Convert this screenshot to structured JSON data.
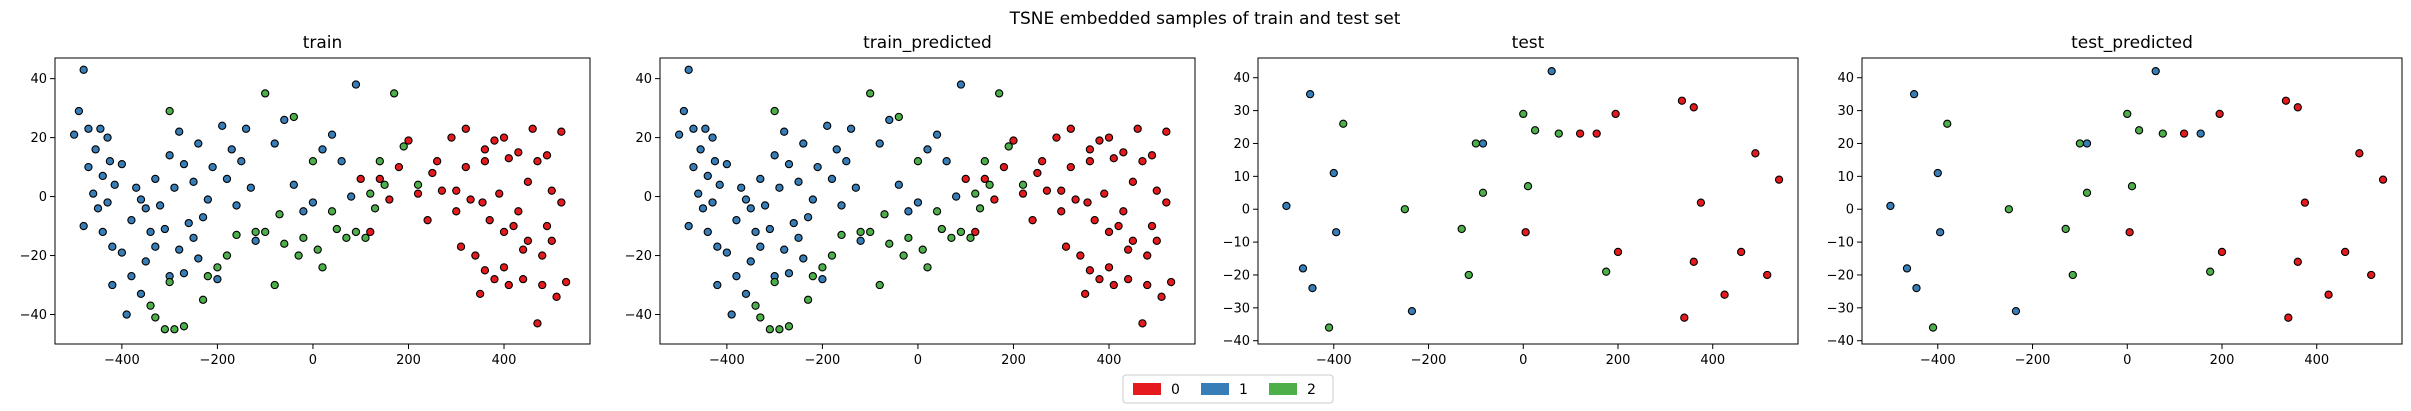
{
  "figure": {
    "suptitle": "TSNE embedded samples of train and test set"
  },
  "legend": {
    "placement": "bottom-center",
    "entries": [
      {
        "label": "0",
        "color": "#e41a1c"
      },
      {
        "label": "1",
        "color": "#377eb8"
      },
      {
        "label": "2",
        "color": "#4daf4a"
      }
    ]
  },
  "class_colors": {
    "0": "#e41a1c",
    "1": "#377eb8",
    "2": "#4daf4a"
  },
  "chart_data": [
    {
      "type": "scatter",
      "title": "train",
      "xlim": [
        -540,
        580
      ],
      "ylim": [
        -50,
        47
      ],
      "xticks": [
        -400,
        -200,
        0,
        200,
        400
      ],
      "yticks": [
        -40,
        -20,
        0,
        20,
        40
      ],
      "points": [
        [
          -480,
          43,
          1
        ],
        [
          -500,
          21,
          1
        ],
        [
          -490,
          29,
          1
        ],
        [
          -470,
          23,
          1
        ],
        [
          -455,
          16,
          1
        ],
        [
          -445,
          23,
          1
        ],
        [
          -430,
          20,
          1
        ],
        [
          -470,
          10,
          1
        ],
        [
          -460,
          1,
          1
        ],
        [
          -450,
          -4,
          1
        ],
        [
          -440,
          7,
          1
        ],
        [
          -425,
          12,
          1
        ],
        [
          -415,
          4,
          1
        ],
        [
          -430,
          -2,
          1
        ],
        [
          -480,
          -10,
          1
        ],
        [
          -440,
          -12,
          1
        ],
        [
          -420,
          -17,
          1
        ],
        [
          -400,
          -19,
          1
        ],
        [
          -380,
          -8,
          1
        ],
        [
          -360,
          -1,
          1
        ],
        [
          -350,
          -22,
          1
        ],
        [
          -340,
          -12,
          1
        ],
        [
          -330,
          -17,
          1
        ],
        [
          -320,
          -3,
          1
        ],
        [
          -310,
          -11,
          1
        ],
        [
          -300,
          -27,
          1
        ],
        [
          -290,
          3,
          1
        ],
        [
          -280,
          -18,
          1
        ],
        [
          -270,
          -26,
          1
        ],
        [
          -260,
          -9,
          1
        ],
        [
          -250,
          -14,
          1
        ],
        [
          -240,
          -21,
          1
        ],
        [
          -230,
          -7,
          1
        ],
        [
          -420,
          -30,
          1
        ],
        [
          -380,
          -27,
          1
        ],
        [
          -360,
          -33,
          1
        ],
        [
          -400,
          11,
          1
        ],
        [
          -370,
          3,
          1
        ],
        [
          -350,
          -4,
          1
        ],
        [
          -330,
          6,
          1
        ],
        [
          -300,
          14,
          1
        ],
        [
          -280,
          22,
          1
        ],
        [
          -270,
          11,
          1
        ],
        [
          -250,
          5,
          1
        ],
        [
          -240,
          18,
          1
        ],
        [
          -220,
          -1,
          1
        ],
        [
          -210,
          10,
          1
        ],
        [
          -200,
          -28,
          1
        ],
        [
          -190,
          24,
          1
        ],
        [
          -180,
          6,
          1
        ],
        [
          -170,
          16,
          1
        ],
        [
          -160,
          -3,
          1
        ],
        [
          -150,
          12,
          1
        ],
        [
          -140,
          23,
          1
        ],
        [
          -130,
          3,
          1
        ],
        [
          -120,
          -15,
          1
        ],
        [
          -80,
          18,
          1
        ],
        [
          -60,
          26,
          1
        ],
        [
          -40,
          4,
          1
        ],
        [
          -20,
          -5,
          1
        ],
        [
          0,
          -2,
          1
        ],
        [
          20,
          16,
          1
        ],
        [
          40,
          21,
          1
        ],
        [
          60,
          12,
          1
        ],
        [
          80,
          0,
          1
        ],
        [
          90,
          38,
          1
        ],
        [
          -390,
          -40,
          1
        ],
        [
          -340,
          -37,
          2
        ],
        [
          -310,
          -45,
          2
        ],
        [
          -290,
          -45,
          2
        ],
        [
          -270,
          -44,
          2
        ],
        [
          -330,
          -41,
          2
        ],
        [
          -300,
          -29,
          2
        ],
        [
          -300,
          29,
          2
        ],
        [
          -230,
          -35,
          2
        ],
        [
          -220,
          -27,
          2
        ],
        [
          -200,
          -24,
          2
        ],
        [
          -180,
          -20,
          2
        ],
        [
          -160,
          -13,
          2
        ],
        [
          -120,
          -12,
          2
        ],
        [
          -100,
          35,
          2
        ],
        [
          -80,
          -30,
          2
        ],
        [
          -100,
          -12,
          2
        ],
        [
          -70,
          -6,
          2
        ],
        [
          -60,
          -16,
          2
        ],
        [
          -40,
          27,
          2
        ],
        [
          -30,
          -20,
          2
        ],
        [
          -20,
          -14,
          2
        ],
        [
          0,
          12,
          2
        ],
        [
          10,
          -18,
          2
        ],
        [
          20,
          -24,
          2
        ],
        [
          40,
          -5,
          2
        ],
        [
          50,
          -11,
          2
        ],
        [
          70,
          -14,
          2
        ],
        [
          90,
          -12,
          2
        ],
        [
          110,
          -14,
          2
        ],
        [
          120,
          1,
          2
        ],
        [
          130,
          -4,
          2
        ],
        [
          140,
          12,
          2
        ],
        [
          150,
          4,
          2
        ],
        [
          170,
          35,
          2
        ],
        [
          190,
          17,
          2
        ],
        [
          220,
          4,
          2
        ],
        [
          100,
          6,
          0
        ],
        [
          120,
          -12,
          0
        ],
        [
          140,
          6,
          0
        ],
        [
          160,
          -1,
          0
        ],
        [
          180,
          10,
          0
        ],
        [
          200,
          19,
          0
        ],
        [
          220,
          1,
          0
        ],
        [
          240,
          -8,
          0
        ],
        [
          260,
          12,
          0
        ],
        [
          270,
          2,
          0
        ],
        [
          290,
          20,
          0
        ],
        [
          300,
          2,
          0
        ],
        [
          310,
          -17,
          0
        ],
        [
          320,
          23,
          0
        ],
        [
          330,
          -1,
          0
        ],
        [
          340,
          -20,
          0
        ],
        [
          350,
          -33,
          0
        ],
        [
          360,
          16,
          0
        ],
        [
          370,
          -8,
          0
        ],
        [
          380,
          19,
          0
        ],
        [
          390,
          1,
          0
        ],
        [
          400,
          -24,
          0
        ],
        [
          410,
          13,
          0
        ],
        [
          420,
          -10,
          0
        ],
        [
          430,
          15,
          0
        ],
        [
          440,
          -28,
          0
        ],
        [
          450,
          5,
          0
        ],
        [
          460,
          23,
          0
        ],
        [
          470,
          -43,
          0
        ],
        [
          480,
          -20,
          0
        ],
        [
          490,
          -10,
          0
        ],
        [
          500,
          2,
          0
        ],
        [
          510,
          -34,
          0
        ],
        [
          520,
          22,
          0
        ],
        [
          530,
          -29,
          0
        ],
        [
          320,
          10,
          0
        ],
        [
          355,
          -2,
          0
        ],
        [
          400,
          -12,
          0
        ],
        [
          430,
          -5,
          0
        ],
        [
          470,
          12,
          0
        ],
        [
          500,
          -15,
          0
        ],
        [
          520,
          -2,
          0
        ],
        [
          300,
          -5,
          0
        ],
        [
          360,
          -25,
          0
        ],
        [
          410,
          -30,
          0
        ],
        [
          440,
          -18,
          0
        ],
        [
          480,
          -30,
          0
        ],
        [
          490,
          14,
          0
        ],
        [
          360,
          12,
          0
        ],
        [
          250,
          8,
          0
        ],
        [
          400,
          20,
          0
        ],
        [
          450,
          -15,
          0
        ],
        [
          380,
          -28,
          0
        ]
      ]
    },
    {
      "type": "scatter",
      "title": "train_predicted",
      "xlim": [
        -540,
        580
      ],
      "ylim": [
        -50,
        47
      ],
      "xticks": [
        -400,
        -200,
        0,
        200,
        400
      ],
      "yticks": [
        -40,
        -20,
        0,
        20,
        40
      ],
      "points": "same_as_train"
    },
    {
      "type": "scatter",
      "title": "test",
      "xlim": [
        -560,
        580
      ],
      "ylim": [
        -41,
        46
      ],
      "xticks": [
        -400,
        -200,
        0,
        200,
        400
      ],
      "yticks": [
        -40,
        -30,
        -20,
        -10,
        0,
        10,
        20,
        30,
        40
      ],
      "points": [
        [
          -500,
          1,
          1
        ],
        [
          -465,
          -18,
          1
        ],
        [
          -450,
          35,
          1
        ],
        [
          -445,
          -24,
          1
        ],
        [
          -400,
          11,
          1
        ],
        [
          -395,
          -7,
          1
        ],
        [
          -235,
          -31,
          1
        ],
        [
          -85,
          20,
          1
        ],
        [
          60,
          42,
          1
        ],
        [
          -410,
          -36,
          2
        ],
        [
          -380,
          26,
          2
        ],
        [
          -250,
          0,
          2
        ],
        [
          -130,
          -6,
          2
        ],
        [
          -115,
          -20,
          2
        ],
        [
          -100,
          20,
          2
        ],
        [
          -85,
          5,
          2
        ],
        [
          0,
          29,
          2
        ],
        [
          10,
          7,
          2
        ],
        [
          25,
          24,
          2
        ],
        [
          75,
          23,
          2
        ],
        [
          175,
          -19,
          2
        ],
        [
          5,
          -7,
          0
        ],
        [
          120,
          23,
          0
        ],
        [
          155,
          23,
          0
        ],
        [
          195,
          29,
          0
        ],
        [
          200,
          -13,
          0
        ],
        [
          335,
          33,
          0
        ],
        [
          340,
          -33,
          0
        ],
        [
          360,
          -16,
          0
        ],
        [
          375,
          2,
          0
        ],
        [
          360,
          31,
          0
        ],
        [
          425,
          -26,
          0
        ],
        [
          460,
          -13,
          0
        ],
        [
          490,
          17,
          0
        ],
        [
          515,
          -20,
          0
        ],
        [
          540,
          9,
          0
        ]
      ]
    },
    {
      "type": "scatter",
      "title": "test_predicted",
      "xlim": [
        -560,
        580
      ],
      "ylim": [
        -41,
        46
      ],
      "xticks": [
        -400,
        -200,
        0,
        200,
        400
      ],
      "yticks": [
        -40,
        -30,
        -20,
        -10,
        0,
        10,
        20,
        30,
        40
      ],
      "points": [
        [
          -500,
          1,
          1
        ],
        [
          -465,
          -18,
          1
        ],
        [
          -450,
          35,
          1
        ],
        [
          -445,
          -24,
          1
        ],
        [
          -400,
          11,
          1
        ],
        [
          -395,
          -7,
          1
        ],
        [
          -235,
          -31,
          1
        ],
        [
          -85,
          20,
          1
        ],
        [
          60,
          42,
          1
        ],
        [
          155,
          23,
          1
        ],
        [
          -410,
          -36,
          2
        ],
        [
          -380,
          26,
          2
        ],
        [
          -250,
          0,
          2
        ],
        [
          -130,
          -6,
          2
        ],
        [
          -115,
          -20,
          2
        ],
        [
          -100,
          20,
          2
        ],
        [
          -85,
          5,
          2
        ],
        [
          0,
          29,
          2
        ],
        [
          10,
          7,
          2
        ],
        [
          25,
          24,
          2
        ],
        [
          75,
          23,
          2
        ],
        [
          175,
          -19,
          2
        ],
        [
          5,
          -7,
          0
        ],
        [
          120,
          23,
          0
        ],
        [
          195,
          29,
          0
        ],
        [
          200,
          -13,
          0
        ],
        [
          335,
          33,
          0
        ],
        [
          340,
          -33,
          0
        ],
        [
          360,
          -16,
          0
        ],
        [
          375,
          2,
          0
        ],
        [
          360,
          31,
          0
        ],
        [
          425,
          -26,
          0
        ],
        [
          460,
          -13,
          0
        ],
        [
          490,
          17,
          0
        ],
        [
          515,
          -20,
          0
        ],
        [
          540,
          9,
          0
        ]
      ]
    }
  ]
}
